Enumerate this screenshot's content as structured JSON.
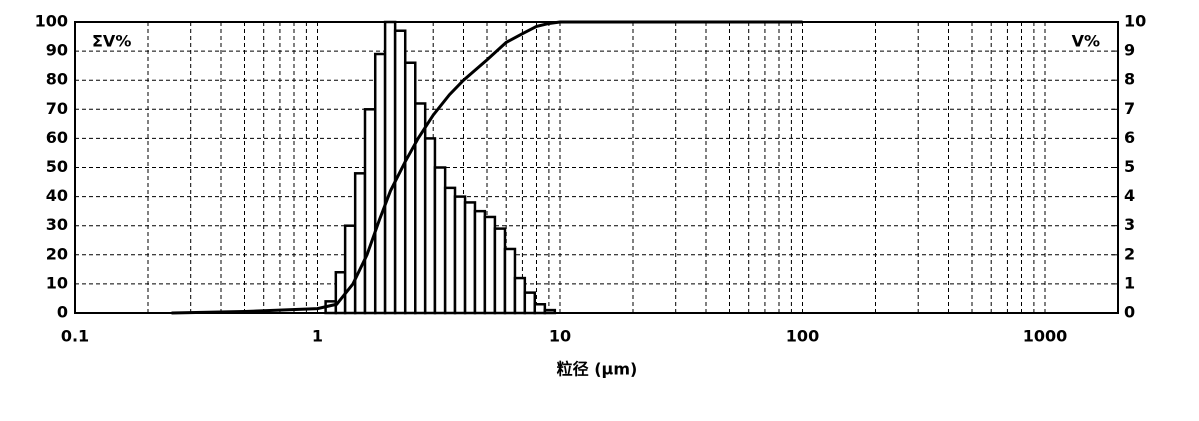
{
  "chart_data": {
    "type": "histogram",
    "ylabel": "ΣV%",
    "y2label": "V%",
    "xlabel": "粒径 (μm)",
    "xscale": "log",
    "xlim": [
      0.1,
      2000
    ],
    "xticks": [
      0.1,
      1,
      10,
      100,
      1000
    ],
    "xminorticks": [
      0.2,
      0.3,
      0.4,
      0.5,
      0.6,
      0.7,
      0.8,
      0.9,
      2,
      3,
      4,
      5,
      6,
      7,
      8,
      9,
      20,
      30,
      40,
      50,
      60,
      70,
      80,
      90,
      200,
      300,
      400,
      500,
      600,
      700,
      800,
      900
    ],
    "ylim": [
      0,
      100
    ],
    "yticks": [
      0,
      10,
      20,
      30,
      40,
      50,
      60,
      70,
      80,
      90,
      100
    ],
    "y2lim": [
      0,
      10
    ],
    "y2ticks": [
      0,
      1,
      2,
      3,
      4,
      5,
      6,
      7,
      8,
      9,
      10
    ],
    "grid": true,
    "color": "#000000",
    "bins": [
      1.08,
      1.19,
      1.3,
      1.43,
      1.57,
      1.73,
      1.9,
      2.09,
      2.3,
      2.53,
      2.78,
      3.05,
      3.36,
      3.69,
      4.06,
      4.46,
      4.9,
      5.39,
      5.93,
      6.52,
      7.16,
      7.87,
      8.66,
      9.52
    ],
    "values": [
      0.4,
      1.4,
      3.0,
      4.8,
      7.0,
      8.9,
      10.0,
      9.7,
      8.6,
      7.2,
      6.0,
      5.0,
      4.3,
      4.0,
      3.8,
      3.5,
      3.3,
      2.9,
      2.2,
      1.2,
      0.7,
      0.3,
      0.1
    ],
    "axis": "y2",
    "cumulative": {
      "x": [
        0.25,
        0.5,
        1,
        1.2,
        1.4,
        1.6,
        1.8,
        2,
        2.3,
        2.6,
        3,
        3.5,
        4,
        5,
        6,
        7,
        8,
        9,
        10,
        100
      ],
      "values": [
        0,
        0.5,
        1.5,
        3,
        10,
        20,
        32,
        42,
        52,
        60,
        68,
        75,
        80,
        87,
        93,
        96,
        98.5,
        99.5,
        100,
        100
      ]
    }
  }
}
